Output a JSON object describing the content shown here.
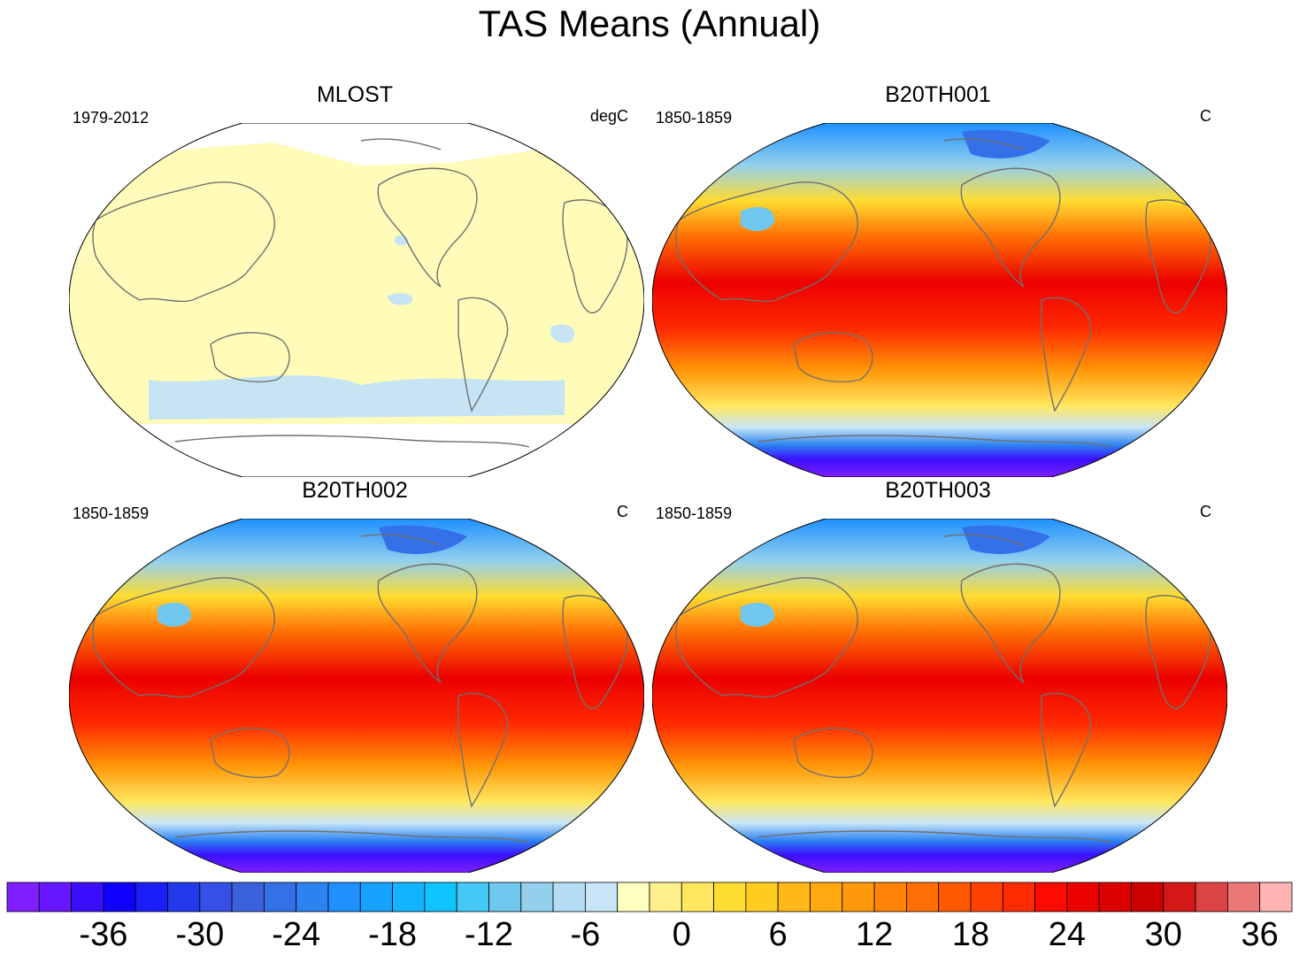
{
  "title": "TAS Means (Annual)",
  "panels": [
    {
      "title": "MLOST",
      "left_label": "1979-2012",
      "right_label": "degC",
      "style": "observed"
    },
    {
      "title": "B20TH001",
      "left_label": "1850-1859",
      "right_label": "C",
      "style": "model"
    },
    {
      "title": "B20TH002",
      "left_label": "1850-1859",
      "right_label": "C",
      "style": "model"
    },
    {
      "title": "B20TH003",
      "left_label": "1850-1859",
      "right_label": "C",
      "style": "model"
    }
  ],
  "colorbar": {
    "labels": [
      "-36",
      "-30",
      "-24",
      "-18",
      "-12",
      "-6",
      "0",
      "6",
      "12",
      "18",
      "24",
      "30",
      "36"
    ],
    "colors": [
      "#7f1fff",
      "#6617ff",
      "#3a0fff",
      "#1000ff",
      "#1a1ef8",
      "#2438ec",
      "#3550e4",
      "#3b62dc",
      "#3470e8",
      "#2c82f0",
      "#1e90ff",
      "#18a2ff",
      "#12b4ff",
      "#10c4ff",
      "#44c8f8",
      "#70c8ee",
      "#94d0ee",
      "#b4dcf2",
      "#c8e6f8",
      "#ffffc0",
      "#fff08c",
      "#ffe860",
      "#ffdc30",
      "#ffcc20",
      "#ffb818",
      "#ffa810",
      "#ff980c",
      "#ff8408",
      "#ff7004",
      "#ff5a00",
      "#ff4000",
      "#ff2a00",
      "#ff0a00",
      "#ec0000",
      "#dc0000",
      "#cc0000",
      "#d41818",
      "#dc4444",
      "#ec7878",
      "#ffb4b4"
    ]
  }
}
